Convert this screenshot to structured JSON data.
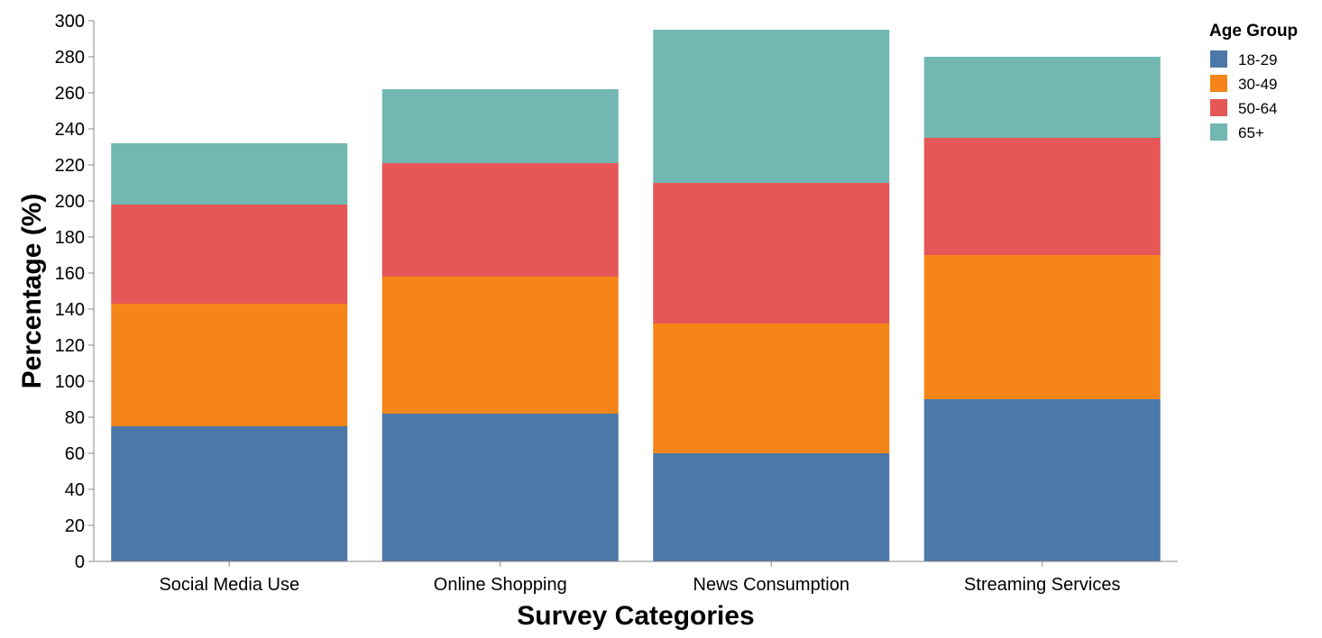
{
  "chart_data": {
    "type": "bar",
    "stacked": true,
    "title": "",
    "xlabel": "Survey Categories",
    "ylabel": "Percentage (%)",
    "ylim": [
      0,
      300
    ],
    "yticks": [
      0,
      20,
      40,
      60,
      80,
      100,
      120,
      140,
      160,
      180,
      200,
      220,
      240,
      260,
      280,
      300
    ],
    "grid": false,
    "legend": {
      "title": "Age Group",
      "placement": "top-right"
    },
    "categories": [
      "Social Media Use",
      "Online Shopping",
      "News Consumption",
      "Streaming Services"
    ],
    "series": [
      {
        "name": "18-29",
        "color": "#4c78a8",
        "values": [
          75,
          82,
          60,
          90
        ]
      },
      {
        "name": "30-49",
        "color": "#f58518",
        "values": [
          68,
          76,
          72,
          80
        ]
      },
      {
        "name": "50-64",
        "color": "#e45756",
        "values": [
          55,
          63,
          78,
          65
        ]
      },
      {
        "name": "65+",
        "color": "#72b7b2",
        "values": [
          34,
          41,
          85,
          45
        ]
      }
    ]
  }
}
